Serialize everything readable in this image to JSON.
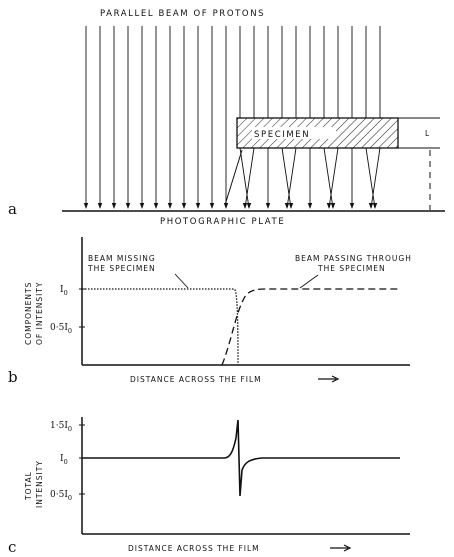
{
  "panel_a": {
    "label": "a",
    "beam_label": "PARALLEL BEAM OF PROTONS",
    "specimen_label": "SPECIMEN",
    "plate_label": "PHOTOGRAPHIC PLATE",
    "thickness_label": "L"
  },
  "panel_b": {
    "label": "b",
    "ylabel_line1": "COMPONENTS",
    "ylabel_line2": "OF INTENSITY",
    "xlabel": "DISTANCE ACROSS THE FILM",
    "missing_line1": "BEAM MISSING",
    "missing_line2": "THE SPECIMEN",
    "passing_line1": "BEAM PASSING THROUGH",
    "passing_line2": "THE SPECIMEN",
    "tick_i0": "I",
    "tick_i0_sub": "0",
    "tick_half": "0·5I",
    "tick_half_sub": "0"
  },
  "panel_c": {
    "label": "c",
    "ylabel_line1": "TOTAL",
    "ylabel_line2": "INTENSITY",
    "xlabel": "DISTANCE ACROSS THE FILM",
    "tick_15": "1·5I",
    "tick_15_sub": "0",
    "tick_i0": "I",
    "tick_i0_sub": "0",
    "tick_half": "0·5I",
    "tick_half_sub": "0"
  },
  "chart_data": [
    {
      "type": "line",
      "panel": "b",
      "xlabel": "DISTANCE ACROSS THE FILM",
      "ylabel": "COMPONENTS OF INTENSITY",
      "series": [
        {
          "name": "BEAM MISSING THE SPECIMEN",
          "x": [
            0,
            0.48,
            0.49,
            0.5
          ],
          "y": [
            1.0,
            1.0,
            0.6,
            0.0
          ]
        },
        {
          "name": "BEAM PASSING THROUGH THE SPECIMEN",
          "x": [
            0.45,
            0.5,
            0.55,
            0.6,
            1.0
          ],
          "y": [
            0.0,
            0.6,
            0.95,
            1.0,
            1.0
          ]
        }
      ]
    },
    {
      "type": "line",
      "panel": "c",
      "xlabel": "DISTANCE ACROSS THE FILM",
      "ylabel": "TOTAL INTENSITY",
      "series": [
        {
          "name": "",
          "x": [
            0,
            0.45,
            0.49,
            0.5,
            0.51,
            0.55,
            1.0
          ],
          "y": [
            1.0,
            1.02,
            1.3,
            1.5,
            0.5,
            0.95,
            1.0
          ]
        }
      ]
    }
  ]
}
